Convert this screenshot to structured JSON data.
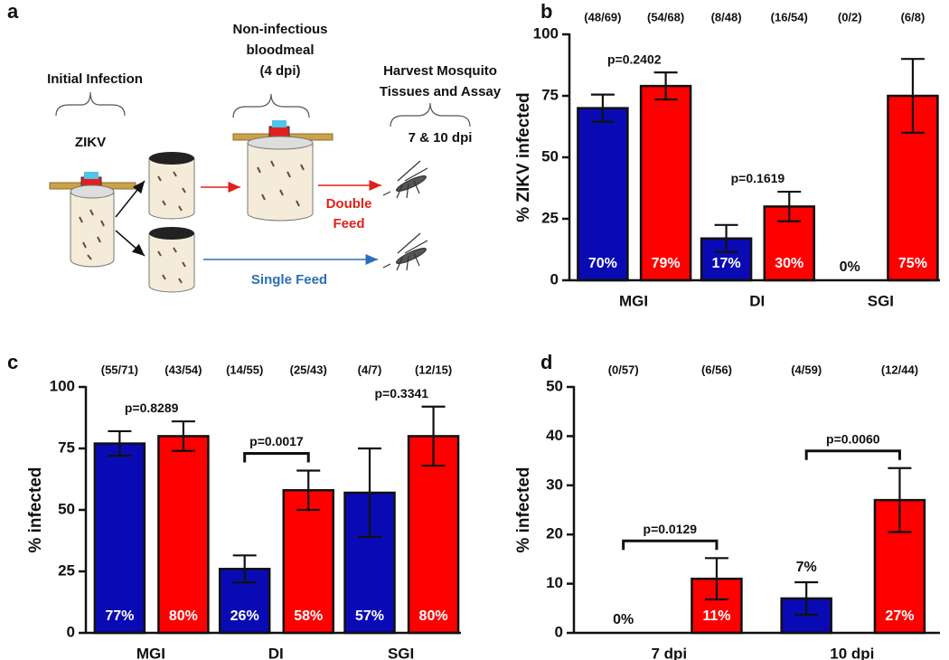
{
  "diagram": {
    "panel": "a",
    "steps": [
      {
        "title": [
          "Initial Infection"
        ],
        "detail": "ZIKV"
      },
      {
        "title": [
          "Non-infectious",
          "bloodmeal",
          "(4 dpi)"
        ]
      },
      {
        "title": [
          "Harvest Mosquito",
          "Tissues and Assay"
        ],
        "detail": "7 & 10 dpi"
      }
    ],
    "double_feed": [
      "Double",
      "Feed"
    ],
    "single_feed": "Single Feed"
  },
  "chart_data": [
    {
      "type": "bar",
      "panel": "b",
      "ylabel": "% ZIKV infected",
      "categories": [
        "MGI",
        "DI",
        "SGI"
      ],
      "ylim": [
        0,
        100
      ],
      "yticks": [
        0,
        25,
        50,
        75,
        100
      ],
      "series": [
        {
          "color": "#0a0ab4",
          "values": [
            70,
            17,
            0
          ],
          "value_labels": [
            "70%",
            "17%",
            "0%"
          ],
          "errors": [
            5.5,
            5.5,
            null
          ],
          "counts": [
            "(48/69)",
            "(8/48)",
            "(0/2)"
          ]
        },
        {
          "color": "#ff0000",
          "values": [
            79,
            30,
            75
          ],
          "value_labels": [
            "79%",
            "30%",
            "75%"
          ],
          "errors": [
            5.5,
            6,
            15
          ],
          "counts": [
            "(54/68)",
            "(16/54)",
            "(6/8)"
          ]
        }
      ],
      "comparisons": [
        {
          "label": "p=0.2402",
          "bracket": false
        },
        {
          "label": "p=0.1619",
          "bracket": false
        },
        null
      ]
    },
    {
      "type": "bar",
      "panel": "c",
      "ylabel": "% infected",
      "categories": [
        "MGI",
        "DI",
        "SGI"
      ],
      "ylim": [
        0,
        100
      ],
      "yticks": [
        0,
        25,
        50,
        75,
        100
      ],
      "series": [
        {
          "color": "#0a0ab4",
          "values": [
            77,
            26,
            57
          ],
          "value_labels": [
            "77%",
            "26%",
            "57%"
          ],
          "errors": [
            5,
            5.5,
            18
          ],
          "counts": [
            "(55/71)",
            "(14/55)",
            "(4/7)"
          ]
        },
        {
          "color": "#ff0000",
          "values": [
            80,
            58,
            80
          ],
          "value_labels": [
            "80%",
            "58%",
            "80%"
          ],
          "errors": [
            6,
            8,
            12
          ],
          "counts": [
            "(43/54)",
            "(25/43)",
            "(12/15)"
          ]
        }
      ],
      "comparisons": [
        {
          "label": "p=0.8289",
          "bracket": false
        },
        {
          "label": "p=0.0017",
          "bracket": true
        },
        {
          "label": "p=0.3341",
          "bracket": false
        }
      ]
    },
    {
      "type": "bar",
      "panel": "d",
      "ylabel": "% infected",
      "categories": [
        "7 dpi",
        "10 dpi"
      ],
      "ylim": [
        0,
        50
      ],
      "yticks": [
        0,
        10,
        20,
        30,
        40,
        50
      ],
      "series": [
        {
          "color": "#0a0ab4",
          "values": [
            0,
            7
          ],
          "value_labels": [
            "0%",
            "7%"
          ],
          "errors": [
            null,
            3.3
          ],
          "counts": [
            "(0/57)",
            "(4/59)"
          ]
        },
        {
          "color": "#ff0000",
          "values": [
            11,
            27
          ],
          "value_labels": [
            "11%",
            "27%"
          ],
          "errors": [
            4.2,
            6.5
          ],
          "counts": [
            "(6/56)",
            "(12/44)"
          ]
        }
      ],
      "comparisons": [
        {
          "label": "p=0.0129",
          "bracket": true
        },
        {
          "label": "p=0.0060",
          "bracket": true
        }
      ]
    }
  ]
}
